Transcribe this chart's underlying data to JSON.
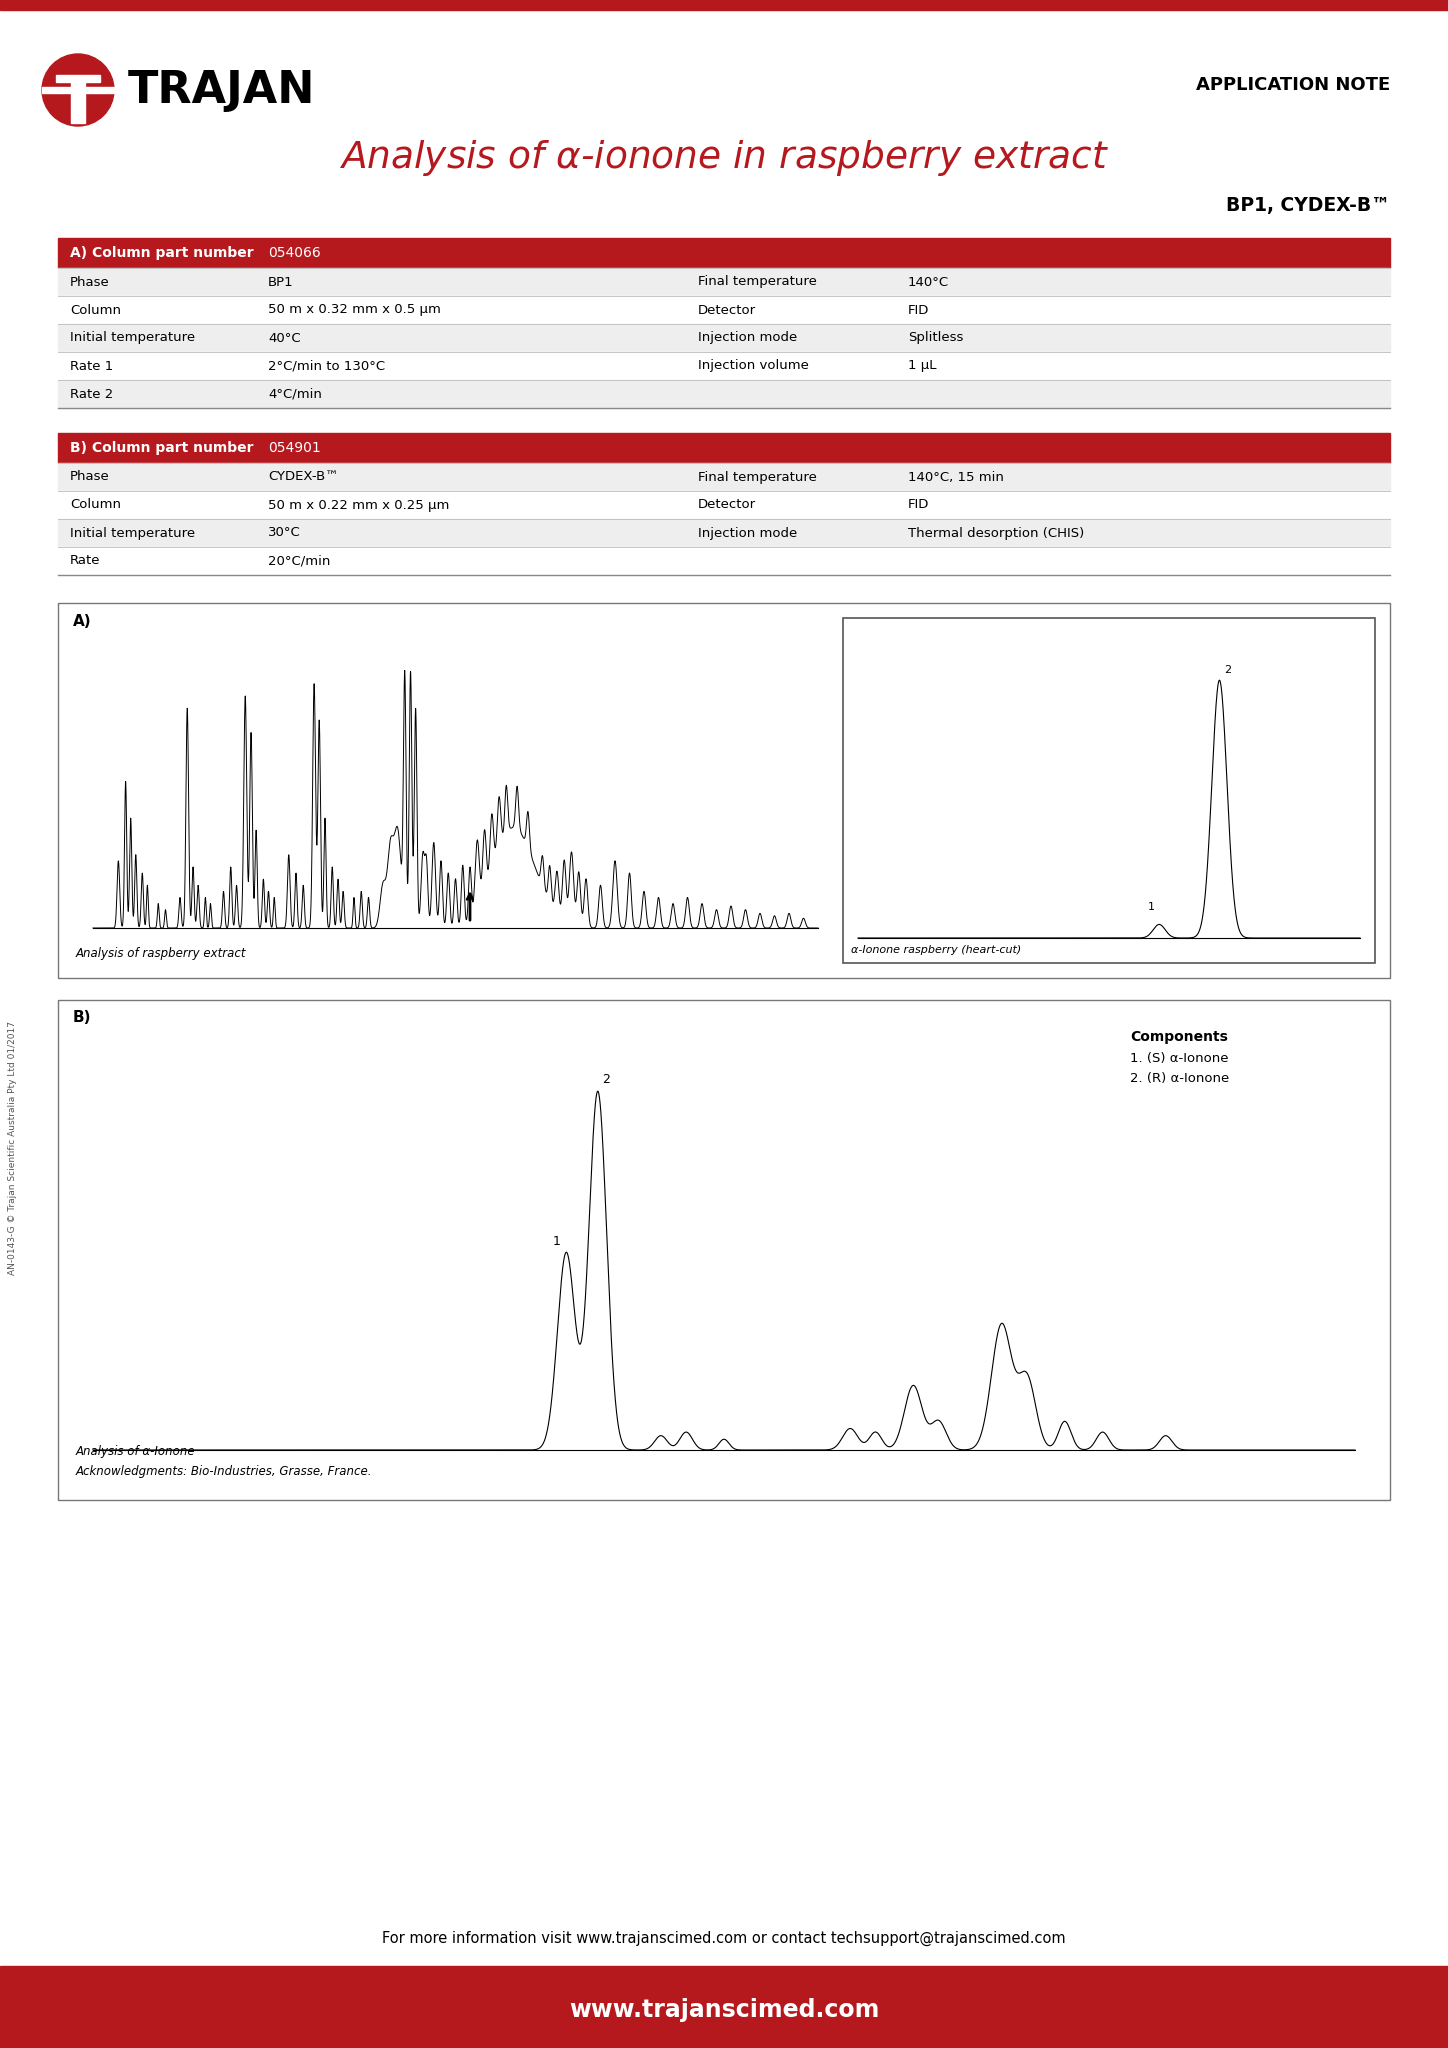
{
  "bg_color": "#ffffff",
  "red_color": "#b5191e",
  "black": "#000000",
  "title_text": "Analysis of $\\alpha$-ionone in raspberry extract",
  "subtitle": "BP1, CYDEX-B™",
  "app_note_label": "APPLICATION NOTE",
  "table_a_header": "A) Column part number",
  "table_a_part": "054066",
  "table_b_header": "B) Column part number",
  "table_b_part": "054901",
  "table_a_rows": [
    [
      "Phase",
      "BP1",
      "Final temperature",
      "140°C"
    ],
    [
      "Column",
      "50 m x 0.32 mm x 0.5 μm",
      "Detector",
      "FID"
    ],
    [
      "Initial temperature",
      "40°C",
      "Injection mode",
      "Splitless"
    ],
    [
      "Rate 1",
      "2°C/min to 130°C",
      "Injection volume",
      "1 μL"
    ],
    [
      "Rate 2",
      "4°C/min",
      "",
      ""
    ]
  ],
  "table_b_rows": [
    [
      "Phase",
      "CYDEX-B™",
      "Final temperature",
      "140°C, 15 min"
    ],
    [
      "Column",
      "50 m x 0.22 mm x 0.25 μm",
      "Detector",
      "FID"
    ],
    [
      "Initial temperature",
      "30°C",
      "Injection mode",
      "Thermal desorption (CHIS)"
    ],
    [
      "Rate",
      "20°C/min",
      "",
      ""
    ]
  ],
  "footer_text": "For more information visit www.trajanscimed.com or contact techsupport@trajanscimed.com",
  "footer_url": "www.trajanscimed.com",
  "side_text": "AN-0143-G © Trajan Scientific Australia Pty Ltd 01/2017",
  "panel_a_label": "A)",
  "panel_b_label": "B)",
  "inset_label": "α-Ionone raspberry (heart-cut)",
  "analysis_label_a": "Analysis of raspberry extract",
  "analysis_label_b": "Analysis of α-Ionone",
  "acknowledgment": "Acknowledgments: Bio-Industries, Grasse, France.",
  "components_title": "Components",
  "component_1": "1. (S) α-Ionone",
  "component_2": "2. (R) α-Ionone"
}
